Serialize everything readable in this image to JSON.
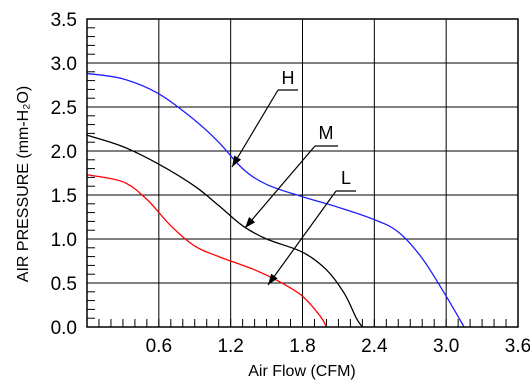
{
  "chart_data": {
    "type": "line",
    "xlabel": "Air Flow (CFM)",
    "ylabel": "AIR PRESSURE (mm-H₂O)",
    "xlim": [
      0,
      3.6
    ],
    "ylim": [
      0,
      3.5
    ],
    "x_ticks": [
      "0.6",
      "1.2",
      "1.8",
      "2.4",
      "3.0",
      "3.6"
    ],
    "y_ticks": [
      "0.0",
      "0.5",
      "1.0",
      "1.5",
      "2.0",
      "2.5",
      "3.0",
      "3.5"
    ],
    "grid": true,
    "series": [
      {
        "name": "H",
        "color": "#1f1fff",
        "points": [
          [
            0,
            2.88
          ],
          [
            0.3,
            2.82
          ],
          [
            0.6,
            2.65
          ],
          [
            0.9,
            2.35
          ],
          [
            1.1,
            2.1
          ],
          [
            1.3,
            1.8
          ],
          [
            1.5,
            1.62
          ],
          [
            1.8,
            1.48
          ],
          [
            2.1,
            1.36
          ],
          [
            2.4,
            1.22
          ],
          [
            2.6,
            1.08
          ],
          [
            2.8,
            0.78
          ],
          [
            3.0,
            0.35
          ],
          [
            3.15,
            0.0
          ]
        ]
      },
      {
        "name": "M",
        "color": "#000000",
        "points": [
          [
            0,
            2.18
          ],
          [
            0.3,
            2.05
          ],
          [
            0.6,
            1.85
          ],
          [
            0.9,
            1.6
          ],
          [
            1.1,
            1.38
          ],
          [
            1.3,
            1.15
          ],
          [
            1.5,
            1.0
          ],
          [
            1.8,
            0.85
          ],
          [
            2.0,
            0.65
          ],
          [
            2.15,
            0.38
          ],
          [
            2.25,
            0.1
          ],
          [
            2.3,
            0.0
          ]
        ]
      },
      {
        "name": "L",
        "color": "#ff0000",
        "points": [
          [
            0,
            1.73
          ],
          [
            0.3,
            1.65
          ],
          [
            0.5,
            1.45
          ],
          [
            0.7,
            1.15
          ],
          [
            0.9,
            0.92
          ],
          [
            1.1,
            0.8
          ],
          [
            1.4,
            0.65
          ],
          [
            1.6,
            0.52
          ],
          [
            1.8,
            0.35
          ],
          [
            1.95,
            0.12
          ],
          [
            2.0,
            0.0
          ]
        ]
      }
    ]
  }
}
